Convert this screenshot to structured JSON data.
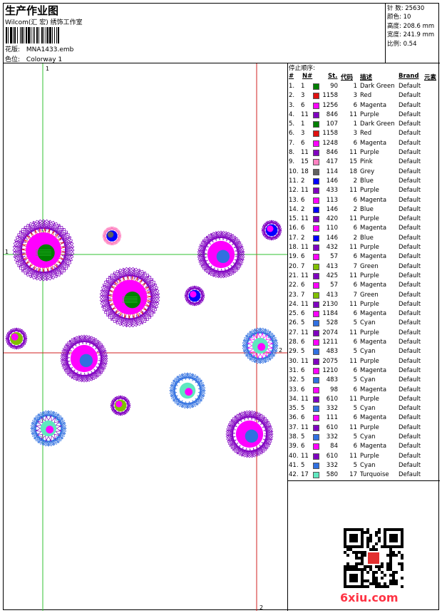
{
  "header": {
    "title": "生产作业图",
    "company": "Wilcom(汇 宏) 绣饰工作室",
    "pattern_label": "花版:",
    "pattern_value": "MNA1433.emb",
    "color_label": "色位:",
    "color_value": "Colorway 1"
  },
  "stats": {
    "stitches": "针 数: 25630",
    "colors": "颜色: 10",
    "height": "高度: 208.6 mm",
    "width": "宽度: 241.9 mm",
    "scale": "比例: 0.54"
  },
  "stop_sequence": {
    "title": "停止顺序:",
    "columns": [
      "#",
      "N#",
      "St.",
      "代码",
      "描述",
      "Brand",
      "元素"
    ],
    "rows": [
      {
        "idx": "1.",
        "n": "1",
        "color": "#008000",
        "st": "90",
        "code": "1",
        "desc": "Dark Green",
        "brand": "Default"
      },
      {
        "idx": "2.",
        "n": "3",
        "color": "#e01010",
        "st": "1158",
        "code": "3",
        "desc": "Red",
        "brand": "Default"
      },
      {
        "idx": "3.",
        "n": "6",
        "color": "#ff00ff",
        "st": "1256",
        "code": "6",
        "desc": "Magenta",
        "brand": "Default"
      },
      {
        "idx": "4.",
        "n": "11",
        "color": "#8000c0",
        "st": "846",
        "code": "11",
        "desc": "Purple",
        "brand": "Default"
      },
      {
        "idx": "5.",
        "n": "1",
        "color": "#008000",
        "st": "107",
        "code": "1",
        "desc": "Dark Green",
        "brand": "Default"
      },
      {
        "idx": "6.",
        "n": "3",
        "color": "#e01010",
        "st": "1158",
        "code": "3",
        "desc": "Red",
        "brand": "Default"
      },
      {
        "idx": "7.",
        "n": "6",
        "color": "#ff00ff",
        "st": "1248",
        "code": "6",
        "desc": "Magenta",
        "brand": "Default"
      },
      {
        "idx": "8.",
        "n": "11",
        "color": "#8000c0",
        "st": "846",
        "code": "11",
        "desc": "Purple",
        "brand": "Default"
      },
      {
        "idx": "9.",
        "n": "15",
        "color": "#ff80c0",
        "st": "417",
        "code": "15",
        "desc": "Pink",
        "brand": "Default"
      },
      {
        "idx": "10.",
        "n": "18",
        "color": "#606060",
        "st": "114",
        "code": "18",
        "desc": "Grey",
        "brand": "Default"
      },
      {
        "idx": "11.",
        "n": "2",
        "color": "#0000ff",
        "st": "146",
        "code": "2",
        "desc": "Blue",
        "brand": "Default"
      },
      {
        "idx": "12.",
        "n": "11",
        "color": "#8000c0",
        "st": "433",
        "code": "11",
        "desc": "Purple",
        "brand": "Default"
      },
      {
        "idx": "13.",
        "n": "6",
        "color": "#ff00ff",
        "st": "113",
        "code": "6",
        "desc": "Magenta",
        "brand": "Default"
      },
      {
        "idx": "14.",
        "n": "2",
        "color": "#0000ff",
        "st": "146",
        "code": "2",
        "desc": "Blue",
        "brand": "Default"
      },
      {
        "idx": "15.",
        "n": "11",
        "color": "#8000c0",
        "st": "420",
        "code": "11",
        "desc": "Purple",
        "brand": "Default"
      },
      {
        "idx": "16.",
        "n": "6",
        "color": "#ff00ff",
        "st": "110",
        "code": "6",
        "desc": "Magenta",
        "brand": "Default"
      },
      {
        "idx": "17.",
        "n": "2",
        "color": "#0000ff",
        "st": "146",
        "code": "2",
        "desc": "Blue",
        "brand": "Default"
      },
      {
        "idx": "18.",
        "n": "11",
        "color": "#8000c0",
        "st": "432",
        "code": "11",
        "desc": "Purple",
        "brand": "Default"
      },
      {
        "idx": "19.",
        "n": "6",
        "color": "#ff00ff",
        "st": "57",
        "code": "6",
        "desc": "Magenta",
        "brand": "Default"
      },
      {
        "idx": "20.",
        "n": "7",
        "color": "#80c000",
        "st": "413",
        "code": "7",
        "desc": "Green",
        "brand": "Default"
      },
      {
        "idx": "21.",
        "n": "11",
        "color": "#8000c0",
        "st": "425",
        "code": "11",
        "desc": "Purple",
        "brand": "Default"
      },
      {
        "idx": "22.",
        "n": "6",
        "color": "#ff00ff",
        "st": "57",
        "code": "6",
        "desc": "Magenta",
        "brand": "Default"
      },
      {
        "idx": "23.",
        "n": "7",
        "color": "#80c000",
        "st": "413",
        "code": "7",
        "desc": "Green",
        "brand": "Default"
      },
      {
        "idx": "24.",
        "n": "11",
        "color": "#8000c0",
        "st": "2130",
        "code": "11",
        "desc": "Purple",
        "brand": "Default"
      },
      {
        "idx": "25.",
        "n": "6",
        "color": "#ff00ff",
        "st": "1184",
        "code": "6",
        "desc": "Magenta",
        "brand": "Default"
      },
      {
        "idx": "26.",
        "n": "5",
        "color": "#3070e0",
        "st": "528",
        "code": "5",
        "desc": "Cyan",
        "brand": "Default"
      },
      {
        "idx": "27.",
        "n": "11",
        "color": "#8000c0",
        "st": "2074",
        "code": "11",
        "desc": "Purple",
        "brand": "Default"
      },
      {
        "idx": "28.",
        "n": "6",
        "color": "#ff00ff",
        "st": "1211",
        "code": "6",
        "desc": "Magenta",
        "brand": "Default"
      },
      {
        "idx": "29.",
        "n": "5",
        "color": "#3070e0",
        "st": "483",
        "code": "5",
        "desc": "Cyan",
        "brand": "Default"
      },
      {
        "idx": "30.",
        "n": "11",
        "color": "#8000c0",
        "st": "2075",
        "code": "11",
        "desc": "Purple",
        "brand": "Default"
      },
      {
        "idx": "31.",
        "n": "6",
        "color": "#ff00ff",
        "st": "1210",
        "code": "6",
        "desc": "Magenta",
        "brand": "Default"
      },
      {
        "idx": "32.",
        "n": "5",
        "color": "#3070e0",
        "st": "483",
        "code": "5",
        "desc": "Cyan",
        "brand": "Default"
      },
      {
        "idx": "33.",
        "n": "6",
        "color": "#ff00ff",
        "st": "98",
        "code": "6",
        "desc": "Magenta",
        "brand": "Default"
      },
      {
        "idx": "34.",
        "n": "11",
        "color": "#8000c0",
        "st": "610",
        "code": "11",
        "desc": "Purple",
        "brand": "Default"
      },
      {
        "idx": "35.",
        "n": "5",
        "color": "#3070e0",
        "st": "332",
        "code": "5",
        "desc": "Cyan",
        "brand": "Default"
      },
      {
        "idx": "36.",
        "n": "6",
        "color": "#ff00ff",
        "st": "111",
        "code": "6",
        "desc": "Magenta",
        "brand": "Default"
      },
      {
        "idx": "37.",
        "n": "11",
        "color": "#8000c0",
        "st": "610",
        "code": "11",
        "desc": "Purple",
        "brand": "Default"
      },
      {
        "idx": "38.",
        "n": "5",
        "color": "#3070e0",
        "st": "332",
        "code": "5",
        "desc": "Cyan",
        "brand": "Default"
      },
      {
        "idx": "39.",
        "n": "6",
        "color": "#ff00ff",
        "st": "84",
        "code": "6",
        "desc": "Magenta",
        "brand": "Default"
      },
      {
        "idx": "40.",
        "n": "11",
        "color": "#8000c0",
        "st": "610",
        "code": "11",
        "desc": "Purple",
        "brand": "Default"
      },
      {
        "idx": "41.",
        "n": "5",
        "color": "#3070e0",
        "st": "332",
        "code": "5",
        "desc": "Cyan",
        "brand": "Default"
      },
      {
        "idx": "42.",
        "n": "17",
        "color": "#60e8c0",
        "st": "580",
        "code": "17",
        "desc": "Turquoise",
        "brand": "Default"
      }
    ]
  },
  "guides": {
    "v1_label": "1",
    "v2_label": "2",
    "h1_label": "1",
    "h2_label": "2",
    "v1_color": "#30c030",
    "h1_color": "#30c030",
    "v2_color": "#d02020",
    "h2_color": "#d02020"
  },
  "flowers": [
    {
      "ring": "#8000c0",
      "ring2": "#e01010",
      "center": "#ff00ff",
      "dot": "#008000",
      "style": "large"
    },
    {
      "ring": "#ff80c0",
      "center": "#0000ff",
      "dot": "#606060",
      "style": "tiny"
    },
    {
      "ring": "#8000c0",
      "center": "#ff00ff",
      "dot": "#3070e0",
      "style": "medium"
    },
    {
      "ring": "#8000c0",
      "center": "#0000ff",
      "dot": "#ff00ff",
      "style": "tiny"
    },
    {
      "ring": "#8000c0",
      "ring2": "#e01010",
      "center": "#ff00ff",
      "dot": "#008000",
      "style": "large"
    },
    {
      "ring": "#8000c0",
      "center": "#0000ff",
      "dot": "#ff00ff",
      "style": "tiny"
    },
    {
      "ring": "#8000c0",
      "center": "#80c000",
      "dot": "#ff00ff",
      "style": "tiny"
    },
    {
      "ring": "#8000c0",
      "center": "#ff00ff",
      "dot": "#3070e0",
      "style": "medium"
    },
    {
      "ring": "#3070e0",
      "ring2": "#ff00ff",
      "center": "#60e8c0",
      "dot": "#ff00ff",
      "style": "star"
    },
    {
      "ring": "#3070e0",
      "center": "#60e8c0",
      "dot": "#ff00ff",
      "style": "star"
    },
    {
      "ring": "#8000c0",
      "center": "#80c000",
      "dot": "#ff00ff",
      "style": "tiny"
    },
    {
      "ring": "#3070e0",
      "ring2": "#8000c0",
      "center": "#60e8c0",
      "dot": "#ff00ff",
      "style": "star"
    },
    {
      "ring": "#8000c0",
      "center": "#ff00ff",
      "dot": "#3070e0",
      "style": "medium"
    }
  ],
  "watermark": "6xiu.com"
}
